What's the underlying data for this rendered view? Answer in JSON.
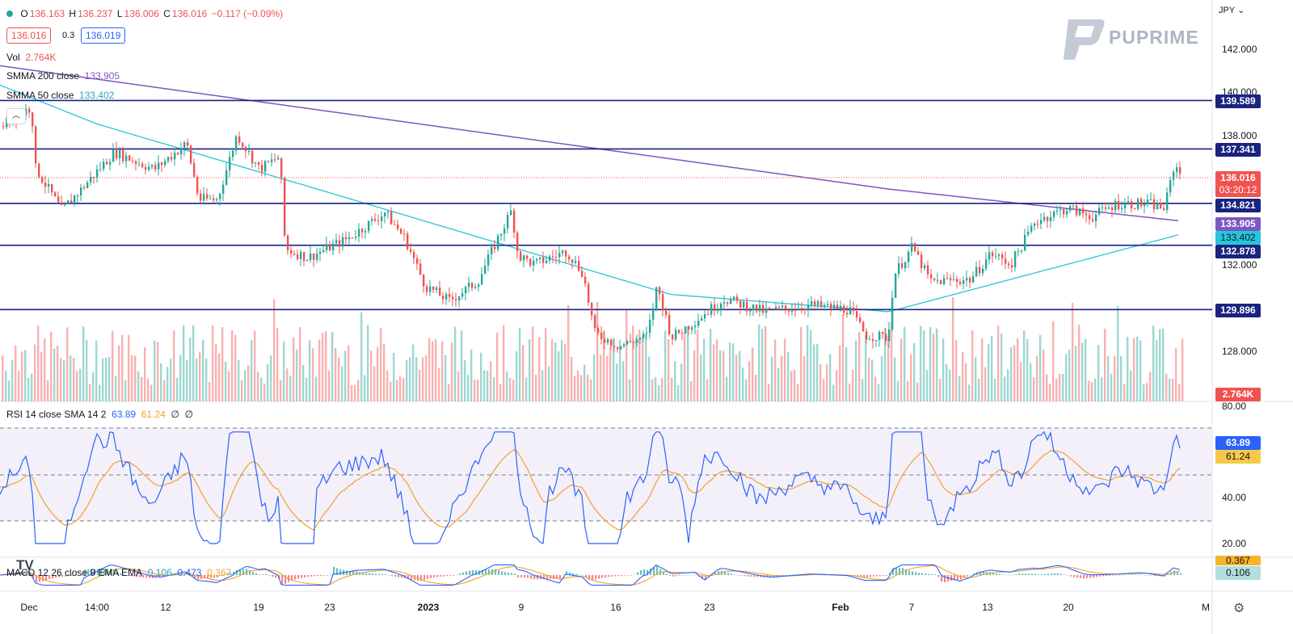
{
  "header": {
    "dot_color": "#26a69a",
    "ohlc": {
      "o_label": "O",
      "o": "136.163",
      "h_label": "H",
      "h": "136.237",
      "l_label": "L",
      "l": "136.006",
      "c_label": "C",
      "c": "136.016",
      "change": "−0.117 (−0.09%)"
    },
    "sell_price": "136.016",
    "spread": "0.3",
    "buy_price": "136.019"
  },
  "legend": {
    "vol_label": "Vol",
    "vol_value": "2.764K",
    "smma200_label": "SMMA 200 close",
    "smma200_value": "133.905",
    "smma50_label": "SMMA 50 close",
    "smma50_value": "133.402"
  },
  "brand": {
    "name": "PUPRIME"
  },
  "currency": "JPY",
  "price_axis": {
    "ticks": [
      "142.000",
      "140.000",
      "138.000",
      "132.000",
      "128.000"
    ]
  },
  "levels": [
    {
      "price": "139.589",
      "color": "#1a237e"
    },
    {
      "price": "137.341",
      "color": "#1a237e"
    },
    {
      "price": "134.821",
      "color": "#1a237e"
    },
    {
      "price": "132.878",
      "color": "#1a237e"
    },
    {
      "price": "129.896",
      "color": "#1a237e"
    }
  ],
  "current": {
    "price": "136.016",
    "countdown": "03:20:12",
    "color": "#ef5350"
  },
  "smma_tags": {
    "smma200": "133.905",
    "smma200_color": "#7e57c2",
    "smma50": "133.402",
    "smma50_color": "#26c6da"
  },
  "volume_tag": "2.764K",
  "rsi": {
    "label": "RSI 14 close SMA 14 2",
    "rsi_value": "63.89",
    "sma_value": "61.24",
    "extra1": "∅",
    "extra2": "∅",
    "axis": [
      "80.00",
      "40.00",
      "20.00"
    ],
    "rsi_tag": "63.89",
    "sma_tag": "61.24"
  },
  "macd": {
    "label": "MACD 12 26 close 9 EMA EMA",
    "hist_value": "0.106",
    "macd_value": "0.473",
    "signal_value": "0.367",
    "signal_tag": "0.367",
    "hist_tag": "0.106"
  },
  "time_axis": [
    "Dec",
    "14:00",
    "12",
    "19",
    "23",
    "2023",
    "9",
    "16",
    "23",
    "Feb",
    "7",
    "13",
    "20",
    "M"
  ],
  "colors": {
    "up": "#26a69a",
    "down": "#ef5350",
    "level": "#1a237e"
  }
}
